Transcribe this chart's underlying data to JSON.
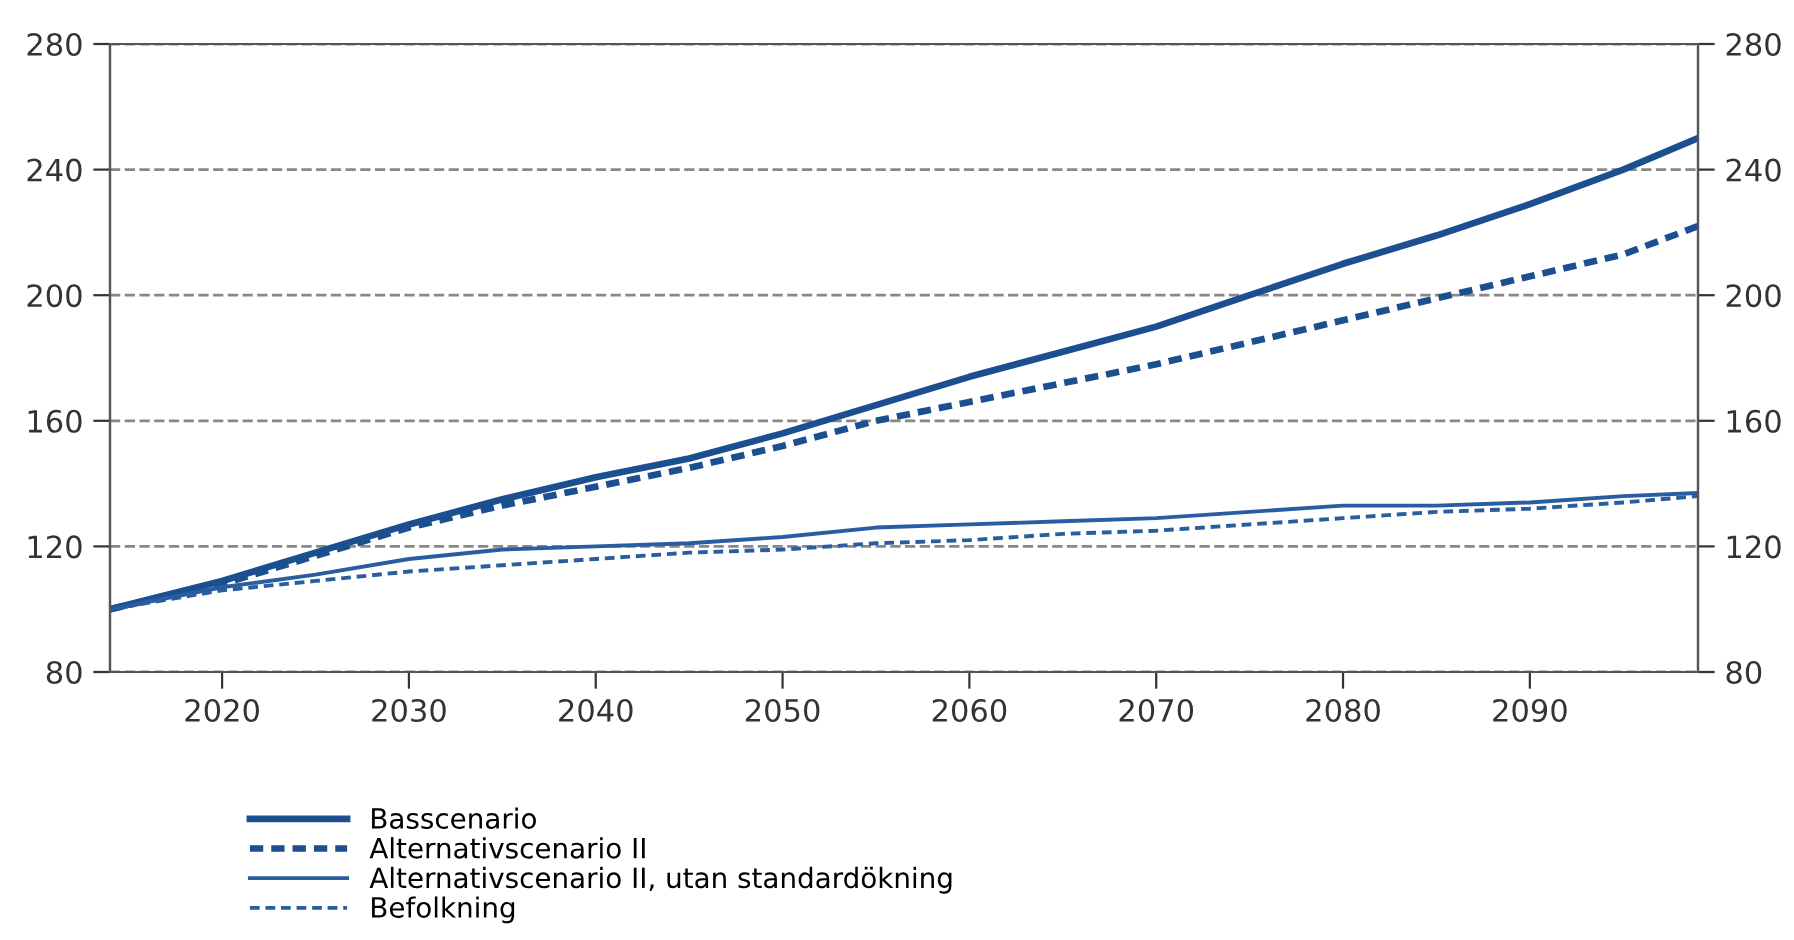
{
  "chart_data": {
    "type": "line",
    "x": [
      2014,
      2020,
      2025,
      2030,
      2035,
      2040,
      2045,
      2050,
      2055,
      2060,
      2065,
      2070,
      2075,
      2080,
      2085,
      2090,
      2095,
      2099
    ],
    "series": [
      {
        "name": "Basscenario",
        "color": "#1b4f8f",
        "line_style": "solid",
        "values": [
          100,
          109,
          118,
          127,
          135,
          142,
          148,
          156,
          165,
          174,
          182,
          190,
          200,
          210,
          219,
          229,
          240,
          250
        ]
      },
      {
        "name": "Alternativscenario II",
        "color": "#1b4f8f",
        "line_style": "dashed",
        "values": [
          100,
          108,
          117,
          126,
          133,
          139,
          145,
          152,
          160,
          166,
          172,
          178,
          185,
          192,
          199,
          206,
          213,
          222
        ]
      },
      {
        "name": "Alternativscenario II, utan standardökning",
        "color": "#2a5d9f",
        "line_style": "solid",
        "values": [
          100,
          107,
          111,
          116,
          119,
          120,
          121,
          123,
          126,
          127,
          128,
          129,
          131,
          133,
          133,
          134,
          136,
          137
        ]
      },
      {
        "name": "Befolkning",
        "color": "#2a5d9f",
        "line_style": "dashed",
        "values": [
          100,
          106,
          109,
          112,
          114,
          116,
          118,
          119,
          121,
          122,
          124,
          125,
          127,
          129,
          131,
          132,
          134,
          136
        ]
      }
    ],
    "xlim": [
      2014,
      2099
    ],
    "xticks": [
      2020,
      2030,
      2040,
      2050,
      2060,
      2070,
      2080,
      2090
    ],
    "ylim": [
      80,
      280
    ],
    "yticks": [
      80,
      120,
      160,
      200,
      240,
      280
    ],
    "y2lim": [
      80,
      280
    ],
    "y2ticks": [
      80,
      120,
      160,
      200,
      240,
      280
    ],
    "grid": "y",
    "legend": "bottom left"
  }
}
